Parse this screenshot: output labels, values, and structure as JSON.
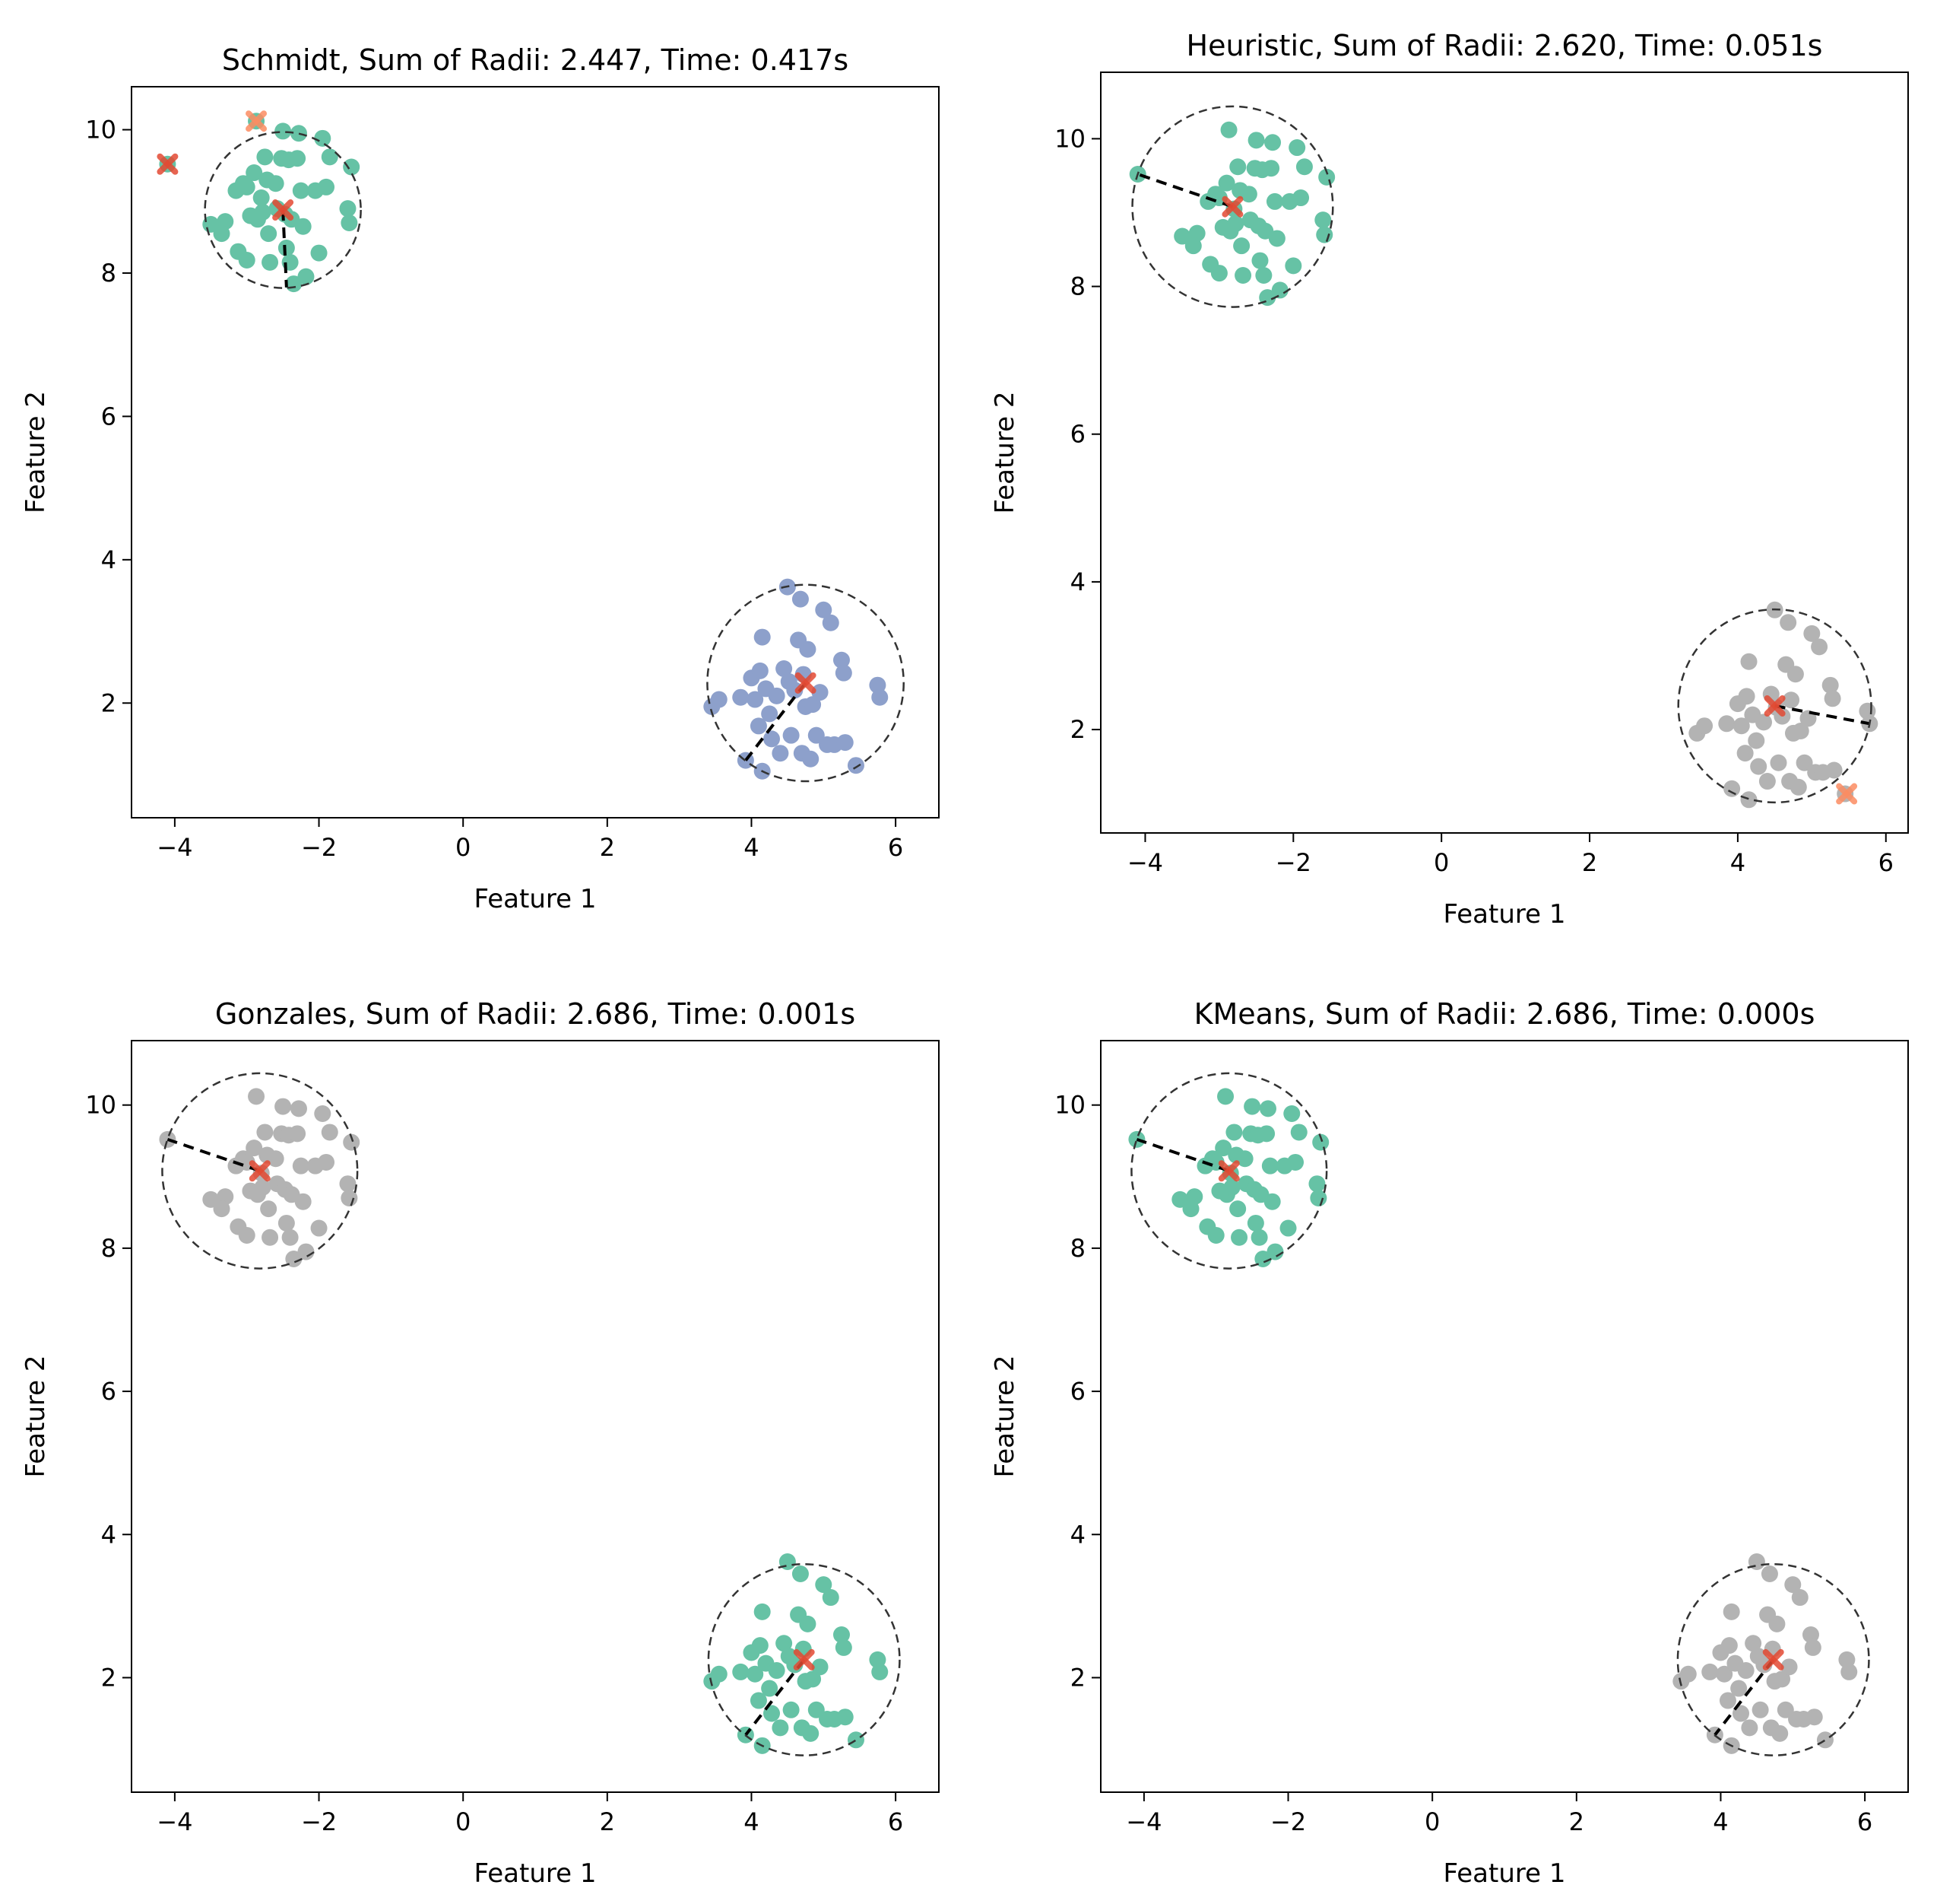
{
  "figure": {
    "xlabel": "Feature 1",
    "ylabel": "Feature 2"
  },
  "colors": {
    "green": "#66c2a5",
    "blue": "#8da0cb",
    "gray": "#b3b3b3",
    "orange": "#fc8d62",
    "center_red": "#e34a33",
    "circle": "#333333",
    "radius_line": "#000000"
  },
  "chart_data": [
    {
      "type": "scatter",
      "title": "Schmidt, Sum of Radii: 2.447, Time: 0.417s",
      "xlabel": "Feature 1",
      "ylabel": "Feature 2",
      "xlim": [
        -4.6,
        6.6
      ],
      "ylim": [
        0.4,
        10.6
      ],
      "xticks": [
        -4,
        -2,
        0,
        2,
        4,
        6
      ],
      "yticks": [
        2,
        4,
        6,
        8,
        10
      ],
      "cluster_colors": [
        "green",
        "blue"
      ],
      "centers": [
        {
          "x": -2.5,
          "y": 8.88
        },
        {
          "x": 4.75,
          "y": 2.28
        }
      ],
      "radius_endpoints": [
        {
          "x": -2.45,
          "y": 7.8
        },
        {
          "x": 3.92,
          "y": 1.2
        }
      ],
      "extra_markers": [
        {
          "x": -4.1,
          "y": 9.52,
          "color": "center_red"
        },
        {
          "x": -2.87,
          "y": 10.12,
          "color": "orange"
        }
      ]
    },
    {
      "type": "scatter",
      "title": "Heuristic, Sum of Radii: 2.620, Time: 0.051s",
      "xlabel": "Feature 1",
      "ylabel": "Feature 2",
      "xlim": [
        -4.6,
        6.3
      ],
      "ylim": [
        0.6,
        10.9
      ],
      "xticks": [
        -4,
        -2,
        0,
        2,
        4,
        6
      ],
      "yticks": [
        2,
        4,
        6,
        8,
        10
      ],
      "cluster_colors": [
        "green",
        "gray"
      ],
      "centers": [
        {
          "x": -2.82,
          "y": 9.08
        },
        {
          "x": 4.5,
          "y": 2.32
        }
      ],
      "radius_endpoints": [
        {
          "x": -4.1,
          "y": 9.52
        },
        {
          "x": 5.78,
          "y": 2.08
        }
      ],
      "extra_markers": [
        {
          "x": 5.47,
          "y": 1.13,
          "color": "orange"
        }
      ]
    },
    {
      "type": "scatter",
      "title": "Gonzales, Sum of Radii: 2.686, Time: 0.001s",
      "xlabel": "Feature 1",
      "ylabel": "Feature 2",
      "xlim": [
        -4.6,
        6.6
      ],
      "ylim": [
        0.4,
        10.9
      ],
      "xticks": [
        -4,
        -2,
        0,
        2,
        4,
        6
      ],
      "yticks": [
        2,
        4,
        6,
        8,
        10
      ],
      "cluster_colors": [
        "gray",
        "green"
      ],
      "centers": [
        {
          "x": -2.82,
          "y": 9.08
        },
        {
          "x": 4.73,
          "y": 2.25
        }
      ],
      "radius_endpoints": [
        {
          "x": -4.1,
          "y": 9.52
        },
        {
          "x": 3.92,
          "y": 1.2
        }
      ],
      "extra_markers": []
    },
    {
      "type": "scatter",
      "title": "KMeans, Sum of Radii: 2.686, Time: 0.000s",
      "xlabel": "Feature 1",
      "ylabel": "Feature 2",
      "xlim": [
        -4.6,
        6.6
      ],
      "ylim": [
        0.4,
        10.9
      ],
      "xticks": [
        -4,
        -2,
        0,
        2,
        4,
        6
      ],
      "yticks": [
        2,
        4,
        6,
        8,
        10
      ],
      "cluster_colors": [
        "green",
        "gray"
      ],
      "centers": [
        {
          "x": -2.82,
          "y": 9.08
        },
        {
          "x": 4.73,
          "y": 2.25
        }
      ],
      "radius_endpoints": [
        {
          "x": -4.1,
          "y": 9.52
        },
        {
          "x": 3.92,
          "y": 1.2
        }
      ],
      "extra_markers": []
    }
  ],
  "points": {
    "cluster_a": [
      [
        -4.1,
        9.52
      ],
      [
        -2.87,
        10.12
      ],
      [
        -3.5,
        8.68
      ],
      [
        -3.3,
        8.72
      ],
      [
        -3.35,
        8.55
      ],
      [
        -3.15,
        9.15
      ],
      [
        -3.05,
        9.25
      ],
      [
        -3.0,
        9.2
      ],
      [
        -3.12,
        8.3
      ],
      [
        -3.0,
        8.18
      ],
      [
        -2.95,
        8.8
      ],
      [
        -2.9,
        9.4
      ],
      [
        -2.85,
        8.75
      ],
      [
        -2.8,
        9.05
      ],
      [
        -2.78,
        8.85
      ],
      [
        -2.75,
        9.62
      ],
      [
        -2.72,
        9.3
      ],
      [
        -2.7,
        8.55
      ],
      [
        -2.68,
        8.15
      ],
      [
        -2.6,
        9.25
      ],
      [
        -2.58,
        8.9
      ],
      [
        -2.52,
        9.6
      ],
      [
        -2.5,
        9.98
      ],
      [
        -2.47,
        8.82
      ],
      [
        -2.45,
        8.35
      ],
      [
        -2.42,
        9.58
      ],
      [
        -2.4,
        8.15
      ],
      [
        -2.38,
        8.75
      ],
      [
        -2.35,
        7.85
      ],
      [
        -2.3,
        9.6
      ],
      [
        -2.28,
        9.95
      ],
      [
        -2.25,
        9.15
      ],
      [
        -2.22,
        8.65
      ],
      [
        -2.18,
        7.95
      ],
      [
        -2.05,
        9.15
      ],
      [
        -2.0,
        8.28
      ],
      [
        -1.95,
        9.88
      ],
      [
        -1.9,
        9.2
      ],
      [
        -1.85,
        9.62
      ],
      [
        -1.6,
        8.9
      ],
      [
        -1.58,
        8.7
      ],
      [
        -1.55,
        9.48
      ]
    ],
    "cluster_b": [
      [
        3.45,
        1.95
      ],
      [
        3.55,
        2.05
      ],
      [
        3.85,
        2.08
      ],
      [
        3.92,
        1.2
      ],
      [
        4.0,
        2.35
      ],
      [
        4.05,
        2.05
      ],
      [
        4.1,
        1.68
      ],
      [
        4.12,
        2.45
      ],
      [
        4.15,
        1.05
      ],
      [
        4.15,
        2.92
      ],
      [
        4.2,
        2.2
      ],
      [
        4.25,
        1.85
      ],
      [
        4.28,
        1.5
      ],
      [
        4.35,
        2.1
      ],
      [
        4.4,
        1.3
      ],
      [
        4.45,
        2.48
      ],
      [
        4.5,
        3.62
      ],
      [
        4.52,
        2.3
      ],
      [
        4.55,
        1.55
      ],
      [
        4.6,
        2.18
      ],
      [
        4.65,
        2.88
      ],
      [
        4.68,
        3.45
      ],
      [
        4.7,
        1.3
      ],
      [
        4.72,
        2.4
      ],
      [
        4.75,
        1.95
      ],
      [
        4.78,
        2.75
      ],
      [
        4.82,
        1.22
      ],
      [
        4.85,
        1.98
      ],
      [
        4.9,
        1.55
      ],
      [
        4.95,
        2.15
      ],
      [
        5.0,
        3.3
      ],
      [
        5.05,
        1.42
      ],
      [
        5.1,
        3.12
      ],
      [
        5.15,
        1.42
      ],
      [
        5.25,
        2.6
      ],
      [
        5.28,
        2.42
      ],
      [
        5.3,
        1.45
      ],
      [
        5.45,
        1.13
      ],
      [
        5.75,
        2.25
      ],
      [
        5.78,
        2.08
      ]
    ]
  }
}
